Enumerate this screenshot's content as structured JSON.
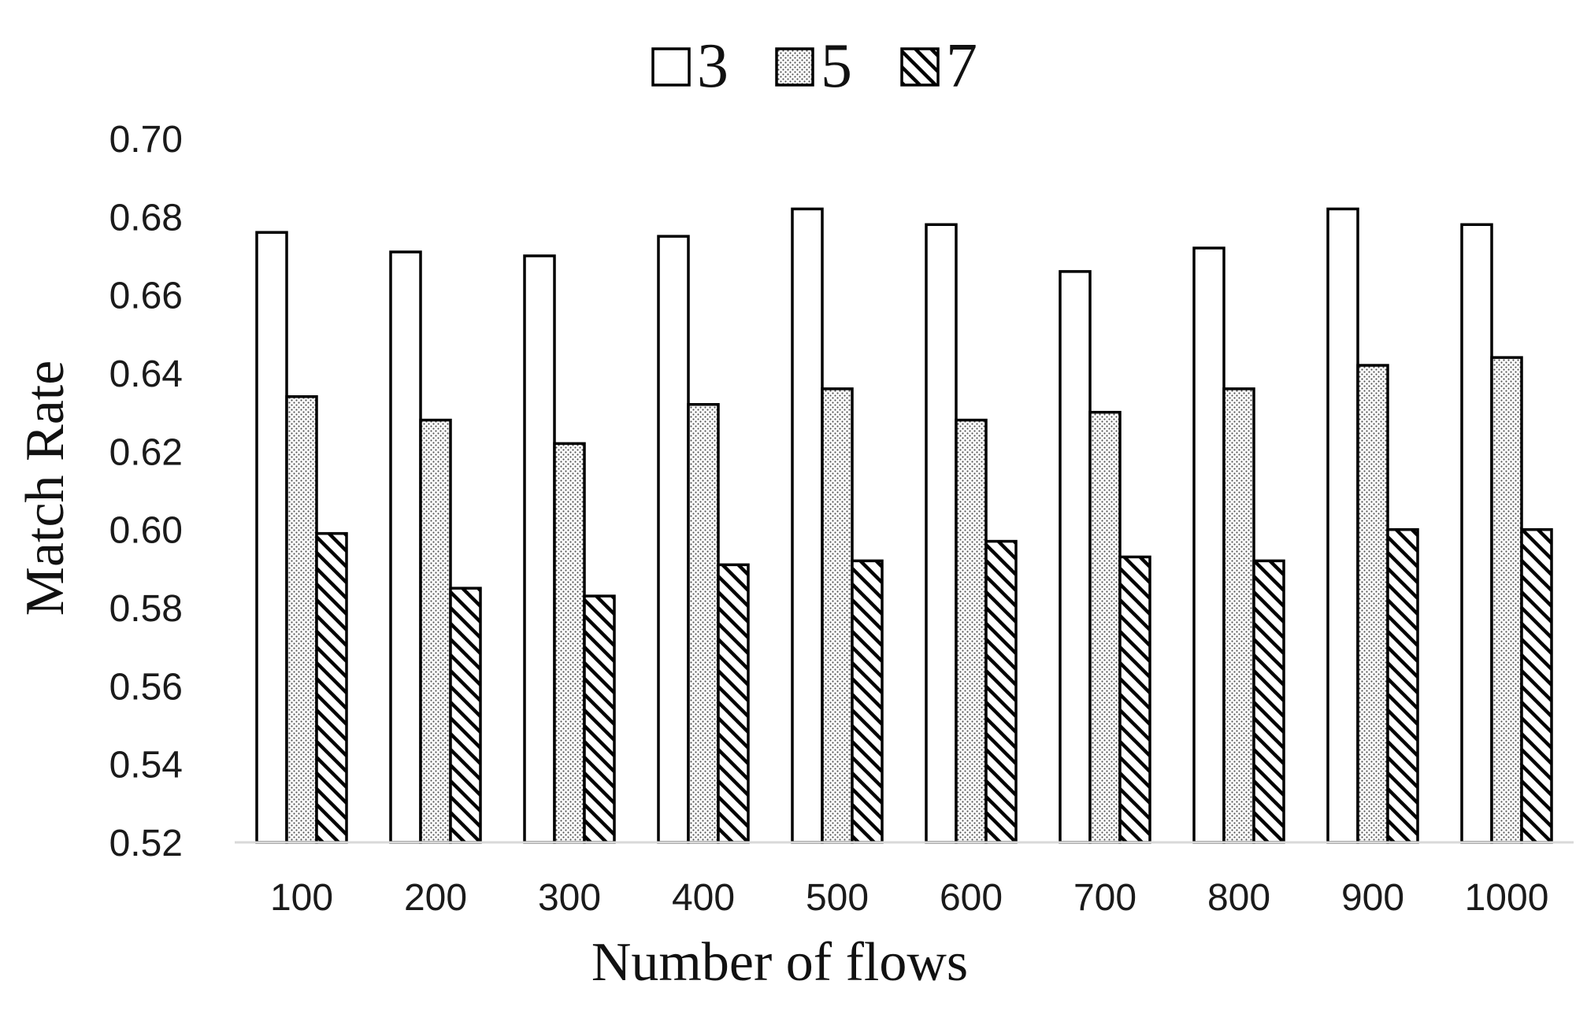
{
  "chart_data": {
    "type": "bar",
    "title": "",
    "xlabel": "Number of flows",
    "ylabel": "Match Rate",
    "ylim": [
      0.52,
      0.7
    ],
    "yticks": [
      "0.70",
      "0.68",
      "0.66",
      "0.64",
      "0.62",
      "0.60",
      "0.58",
      "0.56",
      "0.54",
      "0.52"
    ],
    "grid": false,
    "legend_position": "top-center",
    "categories": [
      "100",
      "200",
      "300",
      "400",
      "500",
      "600",
      "700",
      "800",
      "900",
      "1000"
    ],
    "series": [
      {
        "name": "3",
        "pattern": "empty",
        "values": [
          0.676,
          0.671,
          0.67,
          0.675,
          0.682,
          0.678,
          0.666,
          0.672,
          0.682,
          0.678
        ]
      },
      {
        "name": "5",
        "pattern": "dotted",
        "values": [
          0.634,
          0.628,
          0.622,
          0.632,
          0.636,
          0.628,
          0.63,
          0.636,
          0.642,
          0.644
        ]
      },
      {
        "name": "7",
        "pattern": "diagonal-hatch",
        "values": [
          0.599,
          0.585,
          0.583,
          0.591,
          0.592,
          0.597,
          0.593,
          0.592,
          0.6,
          0.6
        ]
      }
    ],
    "colors": {
      "bar_fill": "#ffffff",
      "bar_stroke": "#000000",
      "axis": "#d9d9d9"
    }
  }
}
